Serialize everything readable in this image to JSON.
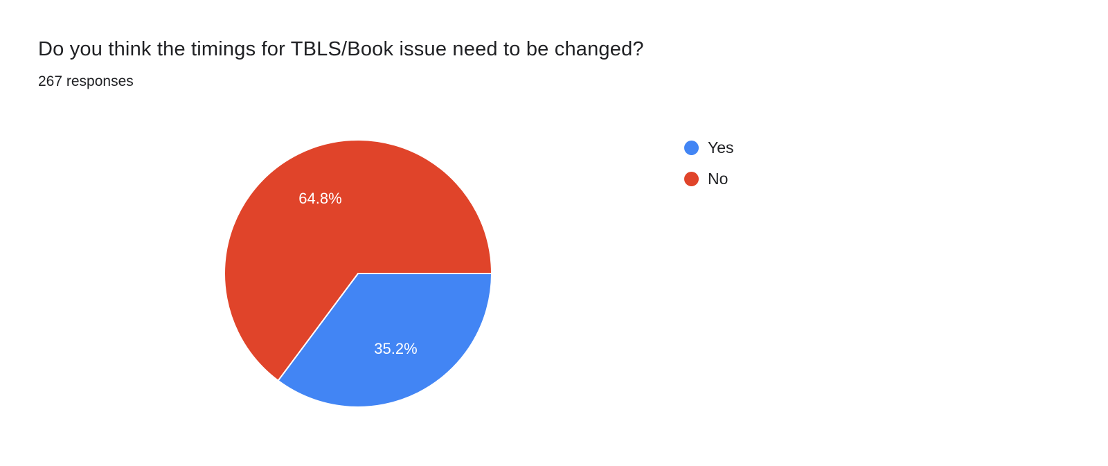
{
  "header": {
    "title": "Do you think the timings for TBLS/Book issue need to be changed?",
    "responses_count": "267 responses"
  },
  "chart_data": {
    "type": "pie",
    "title": "Do you think the timings for TBLS/Book issue need to be changed?",
    "responses_total": 267,
    "legend_position": "right",
    "start_angle_deg": 0,
    "direction": "clockwise",
    "slices": [
      {
        "label": "Yes",
        "value": 35.2,
        "display": "35.2%",
        "color": "#4285f4"
      },
      {
        "label": "No",
        "value": 64.8,
        "display": "64.8%",
        "color": "#e0442a"
      }
    ]
  }
}
